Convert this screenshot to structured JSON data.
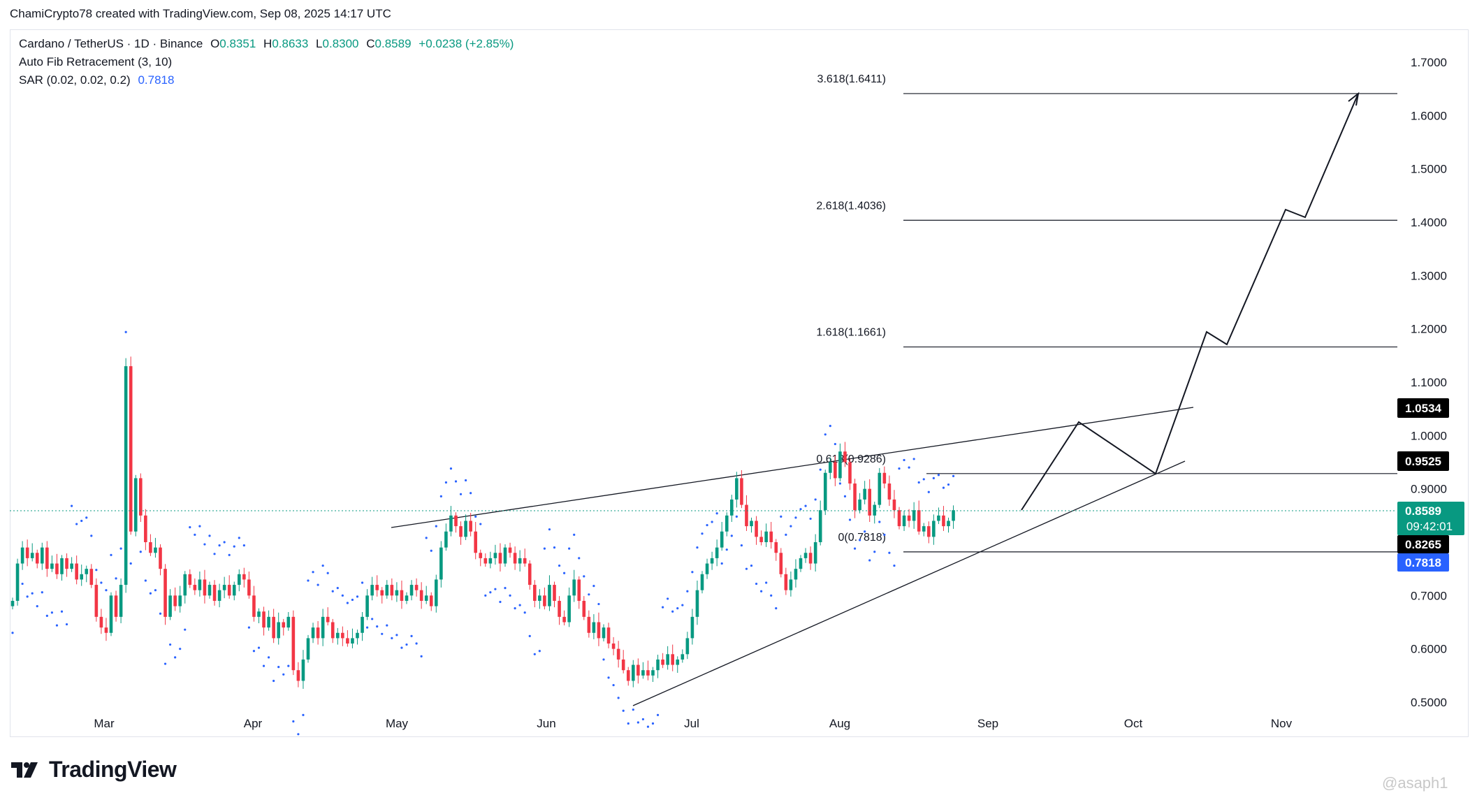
{
  "header": {
    "created_by": "ChamiCrypto78 created with TradingView.com, Sep 08, 2025 14:17 UTC"
  },
  "legend": {
    "symbol": "Cardano / TetherUS · 1D · Binance",
    "o_label": "O",
    "o_value": "0.8351",
    "h_label": "H",
    "h_value": "0.8633",
    "l_label": "L",
    "l_value": "0.8300",
    "c_label": "C",
    "c_value": "0.8589",
    "change": "+0.0238 (+2.85%)",
    "fib_indicator": "Auto Fib Retracement (3, 10)",
    "sar_indicator": "SAR (0.02, 0.02, 0.2)",
    "sar_value": "0.7818"
  },
  "colors": {
    "up": "#089981",
    "down": "#f23645",
    "sar": "#2962ff",
    "line": "#131722",
    "badge_dark": "#000000",
    "badge_green": "#089981",
    "badge_blue": "#2962ff"
  },
  "badges": {
    "b1": "1.0534",
    "b2": "0.9525",
    "last_price": "0.8589",
    "countdown": "09:42:01",
    "b3": "0.8265",
    "sar": "0.7818"
  },
  "brand": {
    "name": "TradingView",
    "logo_icon": "tradingview-logo-icon"
  },
  "watermark": "@asaph1",
  "chart_data": {
    "type": "candlestick",
    "symbol": "ADA/USDT",
    "interval": "1D",
    "x_ticks": [
      "Mar",
      "Apr",
      "May",
      "Jun",
      "Jul",
      "Aug",
      "Sep",
      "Oct",
      "Nov"
    ],
    "y_ticks": [
      "1.7000",
      "1.6000",
      "1.5000",
      "1.4000",
      "1.3000",
      "1.2000",
      "1.1000",
      "1.0000",
      "0.9000",
      "0.8000",
      "0.7000",
      "0.6000",
      "0.5000"
    ],
    "ylim": [
      0.47,
      1.76
    ],
    "fib_levels": [
      {
        "label": "3.618(1.6411)",
        "value": 1.6411
      },
      {
        "label": "2.618(1.4036)",
        "value": 1.4036
      },
      {
        "label": "1.618(1.1661)",
        "value": 1.1661
      },
      {
        "label": "0.618(0.9286)",
        "value": 0.9286
      },
      {
        "label": "0(0.7818)",
        "value": 0.7818
      }
    ],
    "candles_close_path": [
      0.69,
      0.76,
      0.79,
      0.77,
      0.78,
      0.76,
      0.79,
      0.75,
      0.76,
      0.74,
      0.77,
      0.75,
      0.76,
      0.73,
      0.74,
      0.75,
      0.72,
      0.66,
      0.64,
      0.63,
      0.7,
      0.66,
      0.72,
      1.13,
      0.82,
      0.92,
      0.85,
      0.8,
      0.78,
      0.79,
      0.75,
      0.66,
      0.7,
      0.68,
      0.7,
      0.74,
      0.72,
      0.71,
      0.73,
      0.7,
      0.72,
      0.69,
      0.71,
      0.72,
      0.7,
      0.72,
      0.74,
      0.73,
      0.7,
      0.66,
      0.67,
      0.64,
      0.66,
      0.62,
      0.65,
      0.64,
      0.66,
      0.56,
      0.54,
      0.58,
      0.62,
      0.64,
      0.62,
      0.66,
      0.65,
      0.62,
      0.63,
      0.62,
      0.61,
      0.62,
      0.63,
      0.66,
      0.7,
      0.72,
      0.71,
      0.7,
      0.72,
      0.7,
      0.71,
      0.69,
      0.7,
      0.72,
      0.71,
      0.69,
      0.7,
      0.68,
      0.73,
      0.79,
      0.82,
      0.85,
      0.83,
      0.81,
      0.84,
      0.82,
      0.78,
      0.77,
      0.76,
      0.77,
      0.78,
      0.76,
      0.79,
      0.78,
      0.76,
      0.77,
      0.76,
      0.72,
      0.69,
      0.7,
      0.68,
      0.72,
      0.69,
      0.66,
      0.65,
      0.7,
      0.73,
      0.69,
      0.66,
      0.63,
      0.65,
      0.62,
      0.64,
      0.61,
      0.6,
      0.58,
      0.56,
      0.54,
      0.57,
      0.55,
      0.56,
      0.55,
      0.56,
      0.58,
      0.57,
      0.59,
      0.57,
      0.58,
      0.59,
      0.62,
      0.66,
      0.71,
      0.74,
      0.76,
      0.77,
      0.79,
      0.82,
      0.85,
      0.88,
      0.92,
      0.87,
      0.83,
      0.84,
      0.81,
      0.8,
      0.82,
      0.8,
      0.78,
      0.74,
      0.71,
      0.73,
      0.75,
      0.77,
      0.78,
      0.76,
      0.8,
      0.86,
      0.93,
      0.95,
      0.92,
      0.97,
      0.95,
      0.91,
      0.86,
      0.88,
      0.9,
      0.85,
      0.87,
      0.93,
      0.91,
      0.88,
      0.86,
      0.83,
      0.85,
      0.84,
      0.86,
      0.82,
      0.83,
      0.81,
      0.84,
      0.85,
      0.83,
      0.84,
      0.86
    ]
  }
}
